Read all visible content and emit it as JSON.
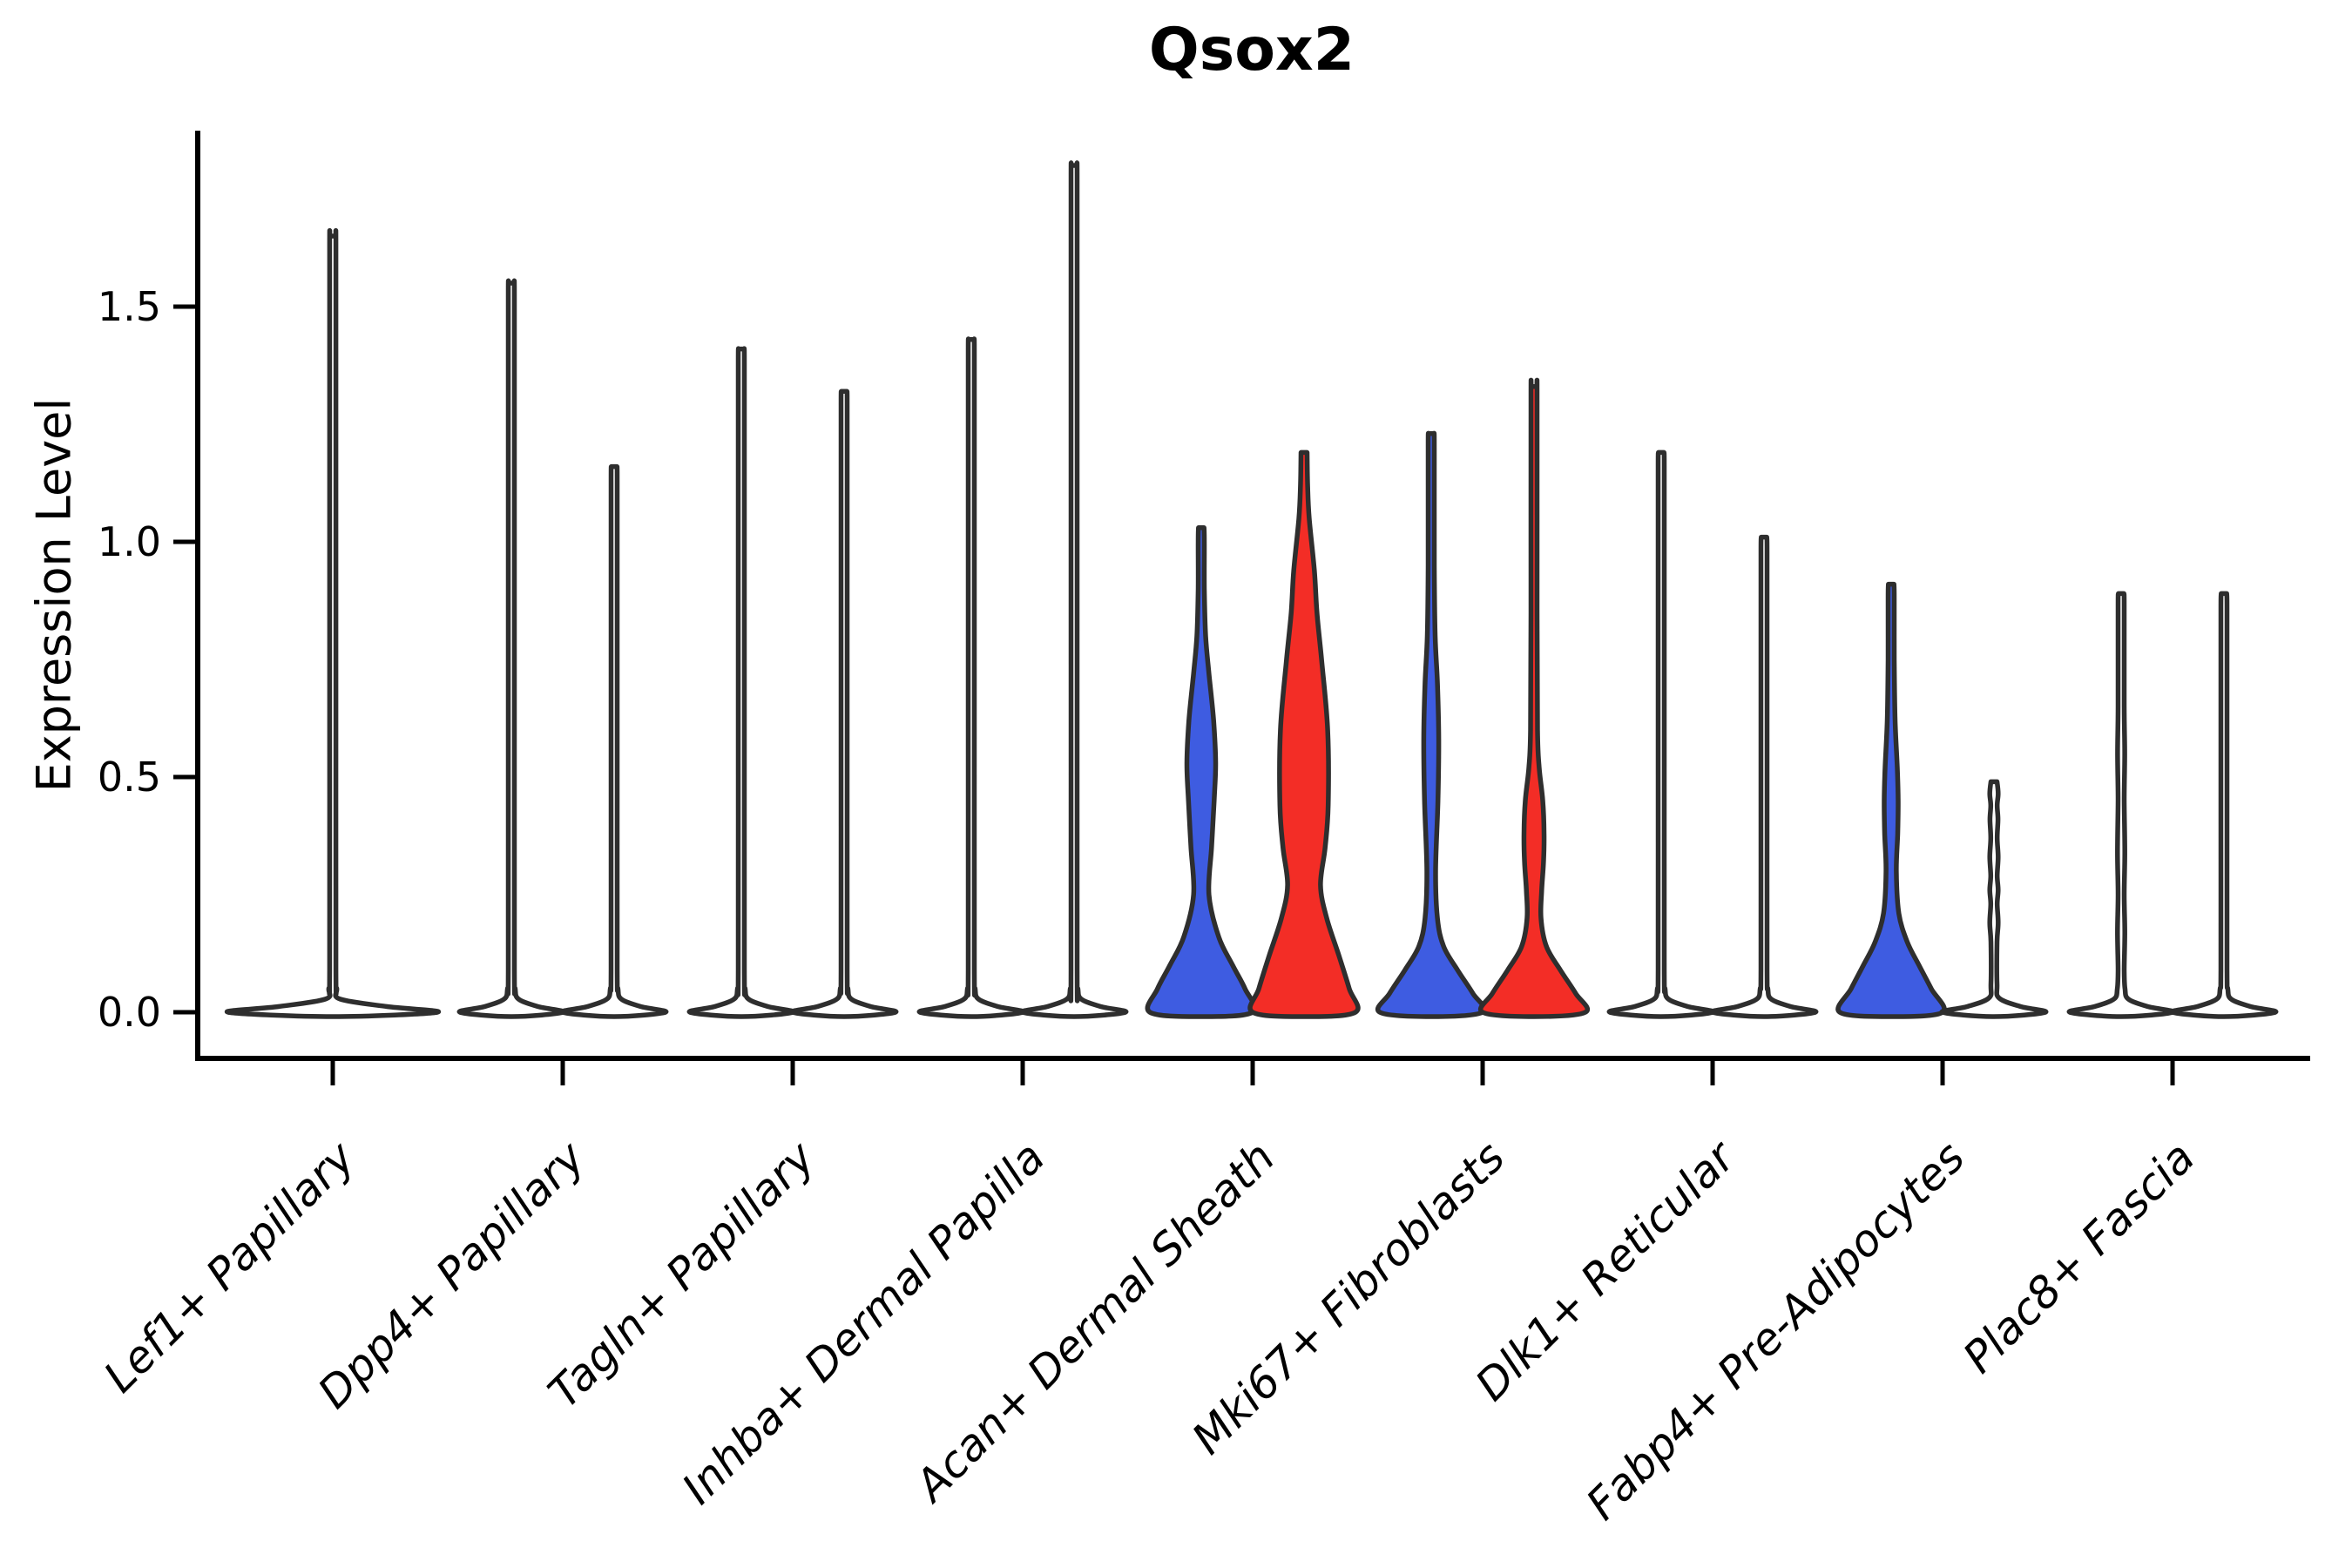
{
  "chart_data": {
    "type": "violin",
    "title": "Qsox2",
    "ylabel": "Expression Level",
    "xlabel": "",
    "ylim": [
      -0.07,
      1.88
    ],
    "grid": "off",
    "legend": "none",
    "yticks": [
      {
        "value": 0.0,
        "label": "0.0"
      },
      {
        "value": 0.5,
        "label": "0.5"
      },
      {
        "value": 1.0,
        "label": "1.0"
      },
      {
        "value": 1.5,
        "label": "1.5"
      }
    ],
    "categories": [
      "Lef1+ Papillary",
      "Dpp4+ Papillary",
      "Tagln+ Papillary",
      "Inhba+ Dermal Papilla",
      "Acan+ Dermal Sheath",
      "Mki67+ Fibroblasts",
      "Dlk1+ Reticular",
      "Fabp4+ Pre-Adipocytes",
      "Plac8+ Fascia"
    ],
    "colors": {
      "split_blue": "#3E5CE1",
      "split_red": "#F32D26",
      "violin_outline": "#2E2E2E",
      "axis": "#000000",
      "background": "#FFFFFF"
    },
    "groups": [
      {
        "category": "Lef1+ Papillary",
        "violins": [
          {
            "split": "single",
            "fill": "#FFFFFF",
            "max": 1.65,
            "profile": [
              [
                0,
                1
              ],
              [
                0.012,
                0.52
              ],
              [
                0.028,
                0.07
              ],
              [
                0.05,
                0.038
              ],
              [
                0.09,
                0.03
              ],
              [
                0.6,
                0.03
              ],
              [
                1.2,
                0.03
              ],
              [
                1.62,
                0.03
              ],
              [
                1.65,
                0.028
              ]
            ]
          }
        ]
      },
      {
        "category": "Dpp4+ Papillary",
        "violins": [
          {
            "split": "left",
            "fill": "#FFFFFF",
            "max": 1.55,
            "profile": [
              [
                0,
                1
              ],
              [
                0.012,
                0.52
              ],
              [
                0.028,
                0.14
              ],
              [
                0.05,
                0.075
              ],
              [
                0.09,
                0.06
              ],
              [
                0.6,
                0.06
              ],
              [
                1.2,
                0.06
              ],
              [
                1.52,
                0.06
              ],
              [
                1.55,
                0.055
              ]
            ]
          },
          {
            "split": "right",
            "fill": "#FFFFFF",
            "max": 1.16,
            "profile": [
              [
                0,
                1
              ],
              [
                0.012,
                0.52
              ],
              [
                0.028,
                0.14
              ],
              [
                0.05,
                0.075
              ],
              [
                0.09,
                0.06
              ],
              [
                0.5,
                0.06
              ],
              [
                0.9,
                0.06
              ],
              [
                1.13,
                0.06
              ],
              [
                1.16,
                0.055
              ]
            ]
          }
        ]
      },
      {
        "category": "Tagln+ Papillary",
        "violins": [
          {
            "split": "left",
            "fill": "#FFFFFF",
            "max": 1.41,
            "profile": [
              [
                0,
                1
              ],
              [
                0.012,
                0.52
              ],
              [
                0.028,
                0.14
              ],
              [
                0.05,
                0.075
              ],
              [
                0.09,
                0.06
              ],
              [
                0.63,
                0.06
              ],
              [
                1.13,
                0.06
              ],
              [
                1.38,
                0.06
              ],
              [
                1.41,
                0.055
              ]
            ]
          },
          {
            "split": "right",
            "fill": "#FFFFFF",
            "max": 1.32,
            "profile": [
              [
                0,
                1
              ],
              [
                0.012,
                0.52
              ],
              [
                0.028,
                0.14
              ],
              [
                0.05,
                0.075
              ],
              [
                0.09,
                0.06
              ],
              [
                0.59,
                0.06
              ],
              [
                1.06,
                0.06
              ],
              [
                1.29,
                0.06
              ],
              [
                1.32,
                0.055
              ]
            ]
          }
        ]
      },
      {
        "category": "Inhba+ Dermal Papilla",
        "violins": [
          {
            "split": "left",
            "fill": "#FFFFFF",
            "max": 1.43,
            "profile": [
              [
                0,
                1
              ],
              [
                0.012,
                0.52
              ],
              [
                0.028,
                0.14
              ],
              [
                0.05,
                0.075
              ],
              [
                0.09,
                0.06
              ],
              [
                0.64,
                0.06
              ],
              [
                1.14,
                0.06
              ],
              [
                1.4,
                0.06
              ],
              [
                1.43,
                0.055
              ]
            ]
          },
          {
            "split": "right",
            "fill": "#FFFFFF",
            "max": 1.8,
            "profile": [
              [
                0,
                1
              ],
              [
                0.012,
                0.52
              ],
              [
                0.028,
                0.14
              ],
              [
                0.05,
                0.075
              ],
              [
                0.09,
                0.06
              ],
              [
                0.81,
                0.06
              ],
              [
                1.44,
                0.06
              ],
              [
                1.77,
                0.06
              ],
              [
                1.8,
                0.055
              ]
            ]
          }
        ]
      },
      {
        "category": "Acan+ Dermal Sheath",
        "violins": [
          {
            "split": "left",
            "fill": "#3E5CE1",
            "max": 1.03,
            "profile": [
              [
                0,
                1
              ],
              [
                0.05,
                0.85
              ],
              [
                0.1,
                0.61
              ],
              [
                0.16,
                0.34
              ],
              [
                0.25,
                0.15
              ],
              [
                0.35,
                0.2
              ],
              [
                0.45,
                0.25
              ],
              [
                0.53,
                0.28
              ],
              [
                0.62,
                0.24
              ],
              [
                0.72,
                0.15
              ],
              [
                0.8,
                0.085
              ],
              [
                0.9,
                0.06
              ],
              [
                1.0,
                0.06
              ],
              [
                1.03,
                0.055
              ]
            ]
          },
          {
            "split": "right",
            "fill": "#F32D26",
            "max": 1.19,
            "profile": [
              [
                0,
                1
              ],
              [
                0.05,
                0.88
              ],
              [
                0.12,
                0.68
              ],
              [
                0.2,
                0.44
              ],
              [
                0.27,
                0.32
              ],
              [
                0.35,
                0.41
              ],
              [
                0.44,
                0.47
              ],
              [
                0.6,
                0.46
              ],
              [
                0.75,
                0.34
              ],
              [
                0.85,
                0.25
              ],
              [
                0.94,
                0.2
              ],
              [
                1.05,
                0.1
              ],
              [
                1.12,
                0.07
              ],
              [
                1.19,
                0.06
              ]
            ]
          }
        ]
      },
      {
        "category": "Mki67+ Fibroblasts",
        "violins": [
          {
            "split": "left",
            "fill": "#3E5CE1",
            "max": 1.23,
            "profile": [
              [
                0,
                1
              ],
              [
                0.04,
                0.81
              ],
              [
                0.09,
                0.51
              ],
              [
                0.14,
                0.24
              ],
              [
                0.2,
                0.12
              ],
              [
                0.3,
                0.085
              ],
              [
                0.45,
                0.13
              ],
              [
                0.58,
                0.145
              ],
              [
                0.7,
                0.12
              ],
              [
                0.8,
                0.076
              ],
              [
                0.95,
                0.06
              ],
              [
                1.2,
                0.06
              ],
              [
                1.23,
                0.055
              ]
            ]
          },
          {
            "split": "right",
            "fill": "#F32D26",
            "max": 1.33,
            "profile": [
              [
                0,
                1
              ],
              [
                0.04,
                0.81
              ],
              [
                0.09,
                0.51
              ],
              [
                0.14,
                0.24
              ],
              [
                0.2,
                0.135
              ],
              [
                0.26,
                0.15
              ],
              [
                0.32,
                0.185
              ],
              [
                0.38,
                0.195
              ],
              [
                0.45,
                0.17
              ],
              [
                0.52,
                0.1
              ],
              [
                0.6,
                0.068
              ],
              [
                0.85,
                0.06
              ],
              [
                1.3,
                0.06
              ],
              [
                1.33,
                0.055
              ]
            ]
          }
        ]
      },
      {
        "category": "Dlk1+ Reticular",
        "violins": [
          {
            "split": "left",
            "fill": "#FFFFFF",
            "max": 1.19,
            "profile": [
              [
                0,
                1
              ],
              [
                0.012,
                0.52
              ],
              [
                0.028,
                0.14
              ],
              [
                0.05,
                0.075
              ],
              [
                0.09,
                0.06
              ],
              [
                0.54,
                0.06
              ],
              [
                0.95,
                0.06
              ],
              [
                1.16,
                0.06
              ],
              [
                1.19,
                0.055
              ]
            ]
          },
          {
            "split": "right",
            "fill": "#FFFFFF",
            "max": 1.01,
            "profile": [
              [
                0,
                1
              ],
              [
                0.012,
                0.52
              ],
              [
                0.028,
                0.14
              ],
              [
                0.05,
                0.075
              ],
              [
                0.09,
                0.06
              ],
              [
                0.45,
                0.06
              ],
              [
                0.81,
                0.06
              ],
              [
                0.98,
                0.06
              ],
              [
                1.01,
                0.055
              ]
            ]
          }
        ]
      },
      {
        "category": "Fabp4+ Pre-Adipocytes",
        "violins": [
          {
            "split": "left",
            "fill": "#3E5CE1",
            "max": 0.91,
            "profile": [
              [
                0,
                1
              ],
              [
                0.05,
                0.78
              ],
              [
                0.1,
                0.54
              ],
              [
                0.15,
                0.31
              ],
              [
                0.21,
                0.15
              ],
              [
                0.3,
                0.1
              ],
              [
                0.38,
                0.127
              ],
              [
                0.45,
                0.136
              ],
              [
                0.52,
                0.119
              ],
              [
                0.62,
                0.076
              ],
              [
                0.75,
                0.06
              ],
              [
                0.88,
                0.06
              ],
              [
                0.91,
                0.055
              ]
            ]
          },
          {
            "split": "right",
            "fill": "#FFFFFF",
            "max": 0.49,
            "profile": [
              [
                0,
                1
              ],
              [
                0.012,
                0.52
              ],
              [
                0.03,
                0.1
              ],
              [
                0.06,
                0.06
              ],
              [
                0.15,
                0.06
              ],
              [
                0.19,
                0.082
              ],
              [
                0.23,
                0.062
              ],
              [
                0.26,
                0.082
              ],
              [
                0.29,
                0.062
              ],
              [
                0.33,
                0.082
              ],
              [
                0.37,
                0.062
              ],
              [
                0.41,
                0.078
              ],
              [
                0.44,
                0.062
              ],
              [
                0.465,
                0.082
              ],
              [
                0.49,
                0.06
              ]
            ]
          }
        ]
      },
      {
        "category": "Plac8+ Fascia",
        "violins": [
          {
            "split": "left",
            "fill": "#FFFFFF",
            "max": 0.89,
            "profile": [
              [
                0,
                1
              ],
              [
                0.012,
                0.52
              ],
              [
                0.028,
                0.14
              ],
              [
                0.05,
                0.075
              ],
              [
                0.09,
                0.06
              ],
              [
                0.17,
                0.072
              ],
              [
                0.25,
                0.06
              ],
              [
                0.34,
                0.072
              ],
              [
                0.45,
                0.06
              ],
              [
                0.55,
                0.07
              ],
              [
                0.65,
                0.06
              ],
              [
                0.86,
                0.06
              ],
              [
                0.89,
                0.055
              ]
            ]
          },
          {
            "split": "right",
            "fill": "#FFFFFF",
            "max": 0.89,
            "profile": [
              [
                0,
                1
              ],
              [
                0.012,
                0.52
              ],
              [
                0.028,
                0.14
              ],
              [
                0.05,
                0.075
              ],
              [
                0.09,
                0.06
              ],
              [
                0.4,
                0.06
              ],
              [
                0.71,
                0.06
              ],
              [
                0.86,
                0.06
              ],
              [
                0.89,
                0.055
              ]
            ]
          }
        ]
      }
    ]
  }
}
